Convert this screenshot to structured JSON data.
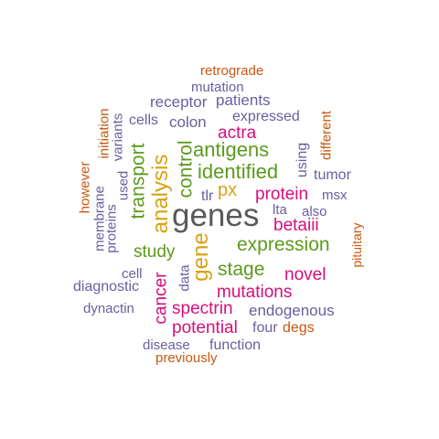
{
  "colors": {
    "gray": "#595959",
    "green": "#5b9a1b",
    "orange": "#d8a114",
    "pink": "#d60e7c",
    "purple": "#6a5e9e",
    "rust": "#c7570f"
  },
  "words": {
    "retrograde": "retrograde",
    "mutation": "mutation",
    "receptor": "receptor",
    "patients": "patients",
    "cells": "cells",
    "colon": "colon",
    "expressed": "expressed",
    "actra": "actra",
    "antigens": "antigens",
    "identified": "identified",
    "px": "px",
    "protein": "protein",
    "msx": "msx",
    "tlr": "tlr",
    "genes": "genes",
    "lta": "lta",
    "also": "also",
    "betaiii": "betaiii",
    "expression": "expression",
    "study": "study",
    "stage": "stage",
    "novel": "novel",
    "mutations": "mutations",
    "cell": "cell",
    "diagnostic": "diagnostic",
    "endogenous": "endogenous",
    "spectrin": "spectrin",
    "dynactin": "dynactin",
    "potential": "potential",
    "four": "four",
    "degs": "degs",
    "disease": "disease",
    "function": "function",
    "previously": "previously",
    "tumor": "tumor",
    "using": "using",
    "different": "different",
    "pituitary": "pituitary",
    "initiation": "initiation",
    "variants": "variants",
    "however": "however",
    "used": "used",
    "membrane": "membrane",
    "proteins": "proteins",
    "transport": "transport",
    "analysis": "analysis",
    "control": "control",
    "gene": "gene",
    "cancer": "cancer",
    "data": "data"
  }
}
